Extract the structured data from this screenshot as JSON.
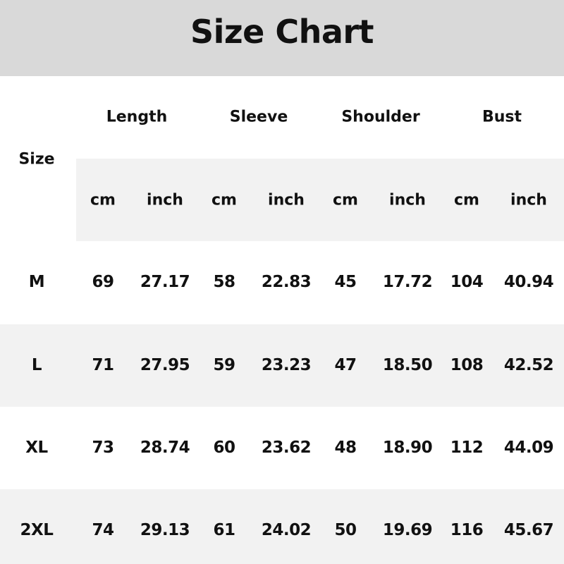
{
  "title": "Size Chart",
  "colors": {
    "title_band": "#d9d9d9",
    "stripe": "#f2f2f2",
    "text": "#111111"
  },
  "size_label": "Size",
  "groups": [
    "Length",
    "Sleeve",
    "Shoulder",
    "Bust"
  ],
  "units": [
    "cm",
    "inch",
    "cm",
    "inch",
    "cm",
    "inch",
    "cm",
    "inch"
  ],
  "rows": [
    {
      "size": "M",
      "values": [
        "69",
        "27.17",
        "58",
        "22.83",
        "45",
        "17.72",
        "104",
        "40.94"
      ]
    },
    {
      "size": "L",
      "values": [
        "71",
        "27.95",
        "59",
        "23.23",
        "47",
        "18.50",
        "108",
        "42.52"
      ]
    },
    {
      "size": "XL",
      "values": [
        "73",
        "28.74",
        "60",
        "23.62",
        "48",
        "18.90",
        "112",
        "44.09"
      ]
    },
    {
      "size": "2XL",
      "values": [
        "74",
        "29.13",
        "61",
        "24.02",
        "50",
        "19.69",
        "116",
        "45.67"
      ]
    }
  ]
}
